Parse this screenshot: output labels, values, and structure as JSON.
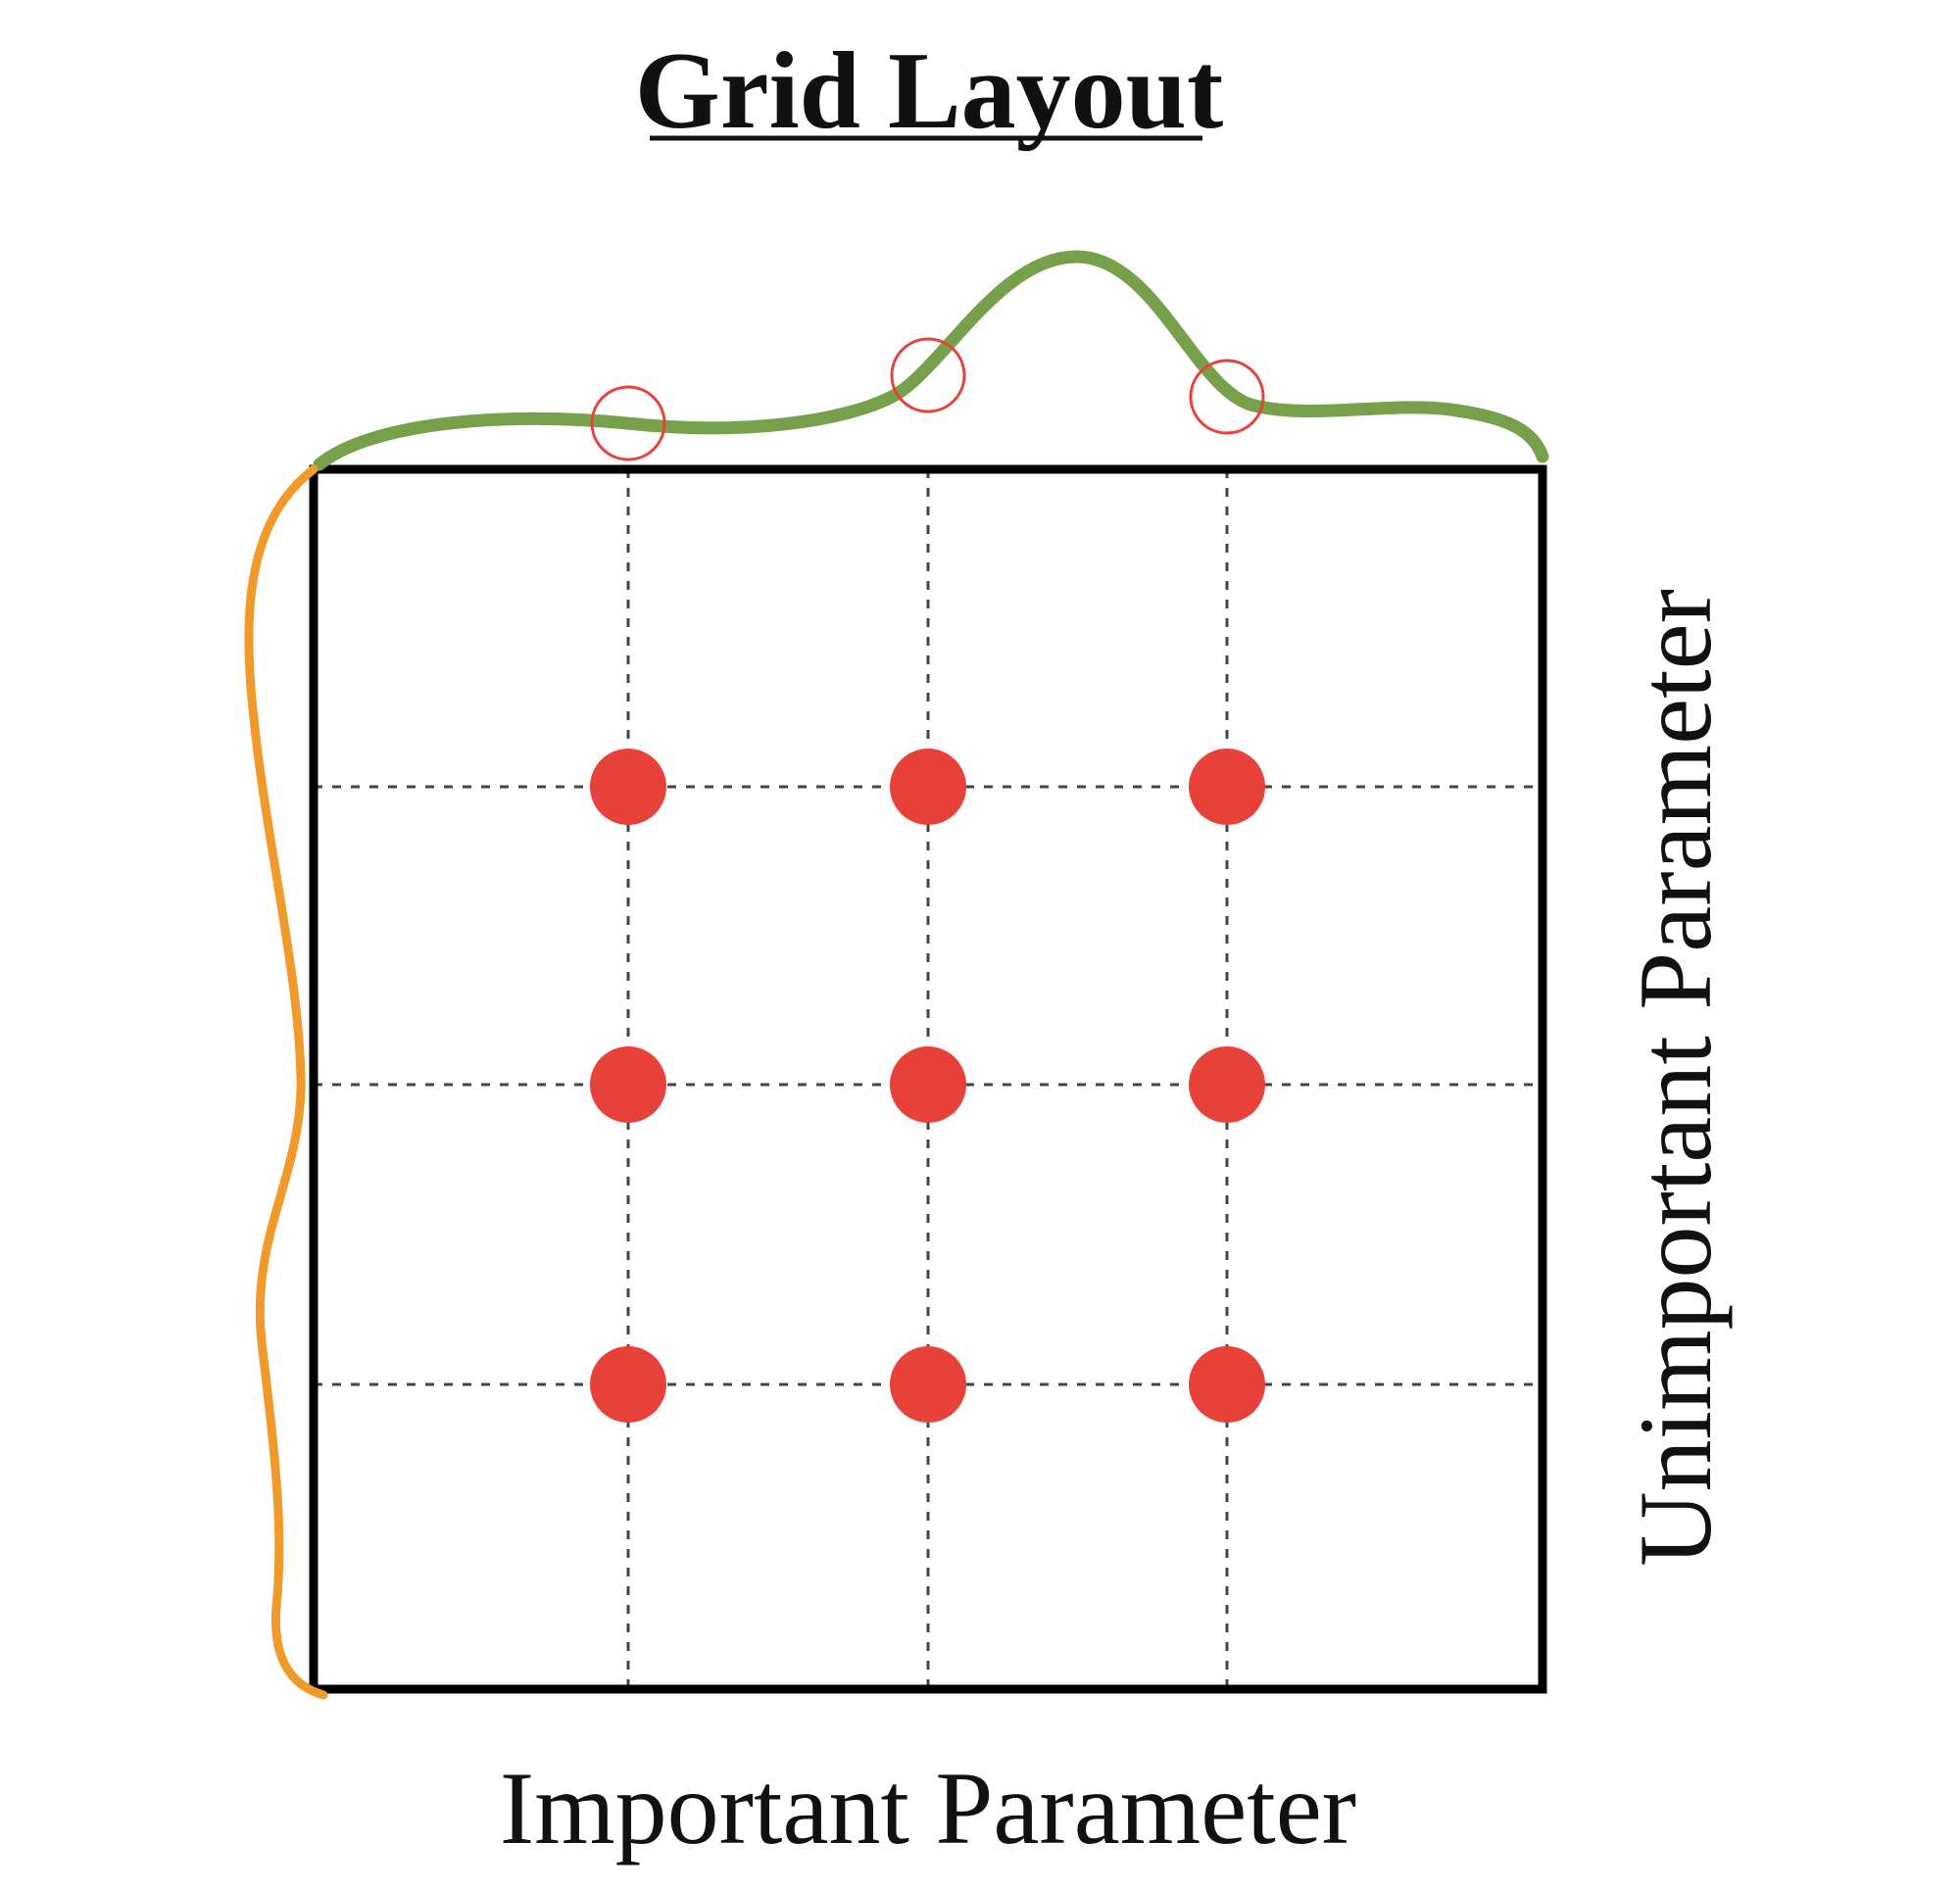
{
  "title": "Grid Layout",
  "x_axis_label": "Important Parameter",
  "y_axis_label": "Unimportant Parameter",
  "grid": {
    "columns": 3,
    "rows": 3
  },
  "colors": {
    "frame": "#000000",
    "grid_lines": "#444444",
    "sample_points": "#e8413a",
    "projection_markers": "#e8413a",
    "important_function_curve": "#76a14a",
    "unimportant_function_curve": "#f09a2c"
  }
}
